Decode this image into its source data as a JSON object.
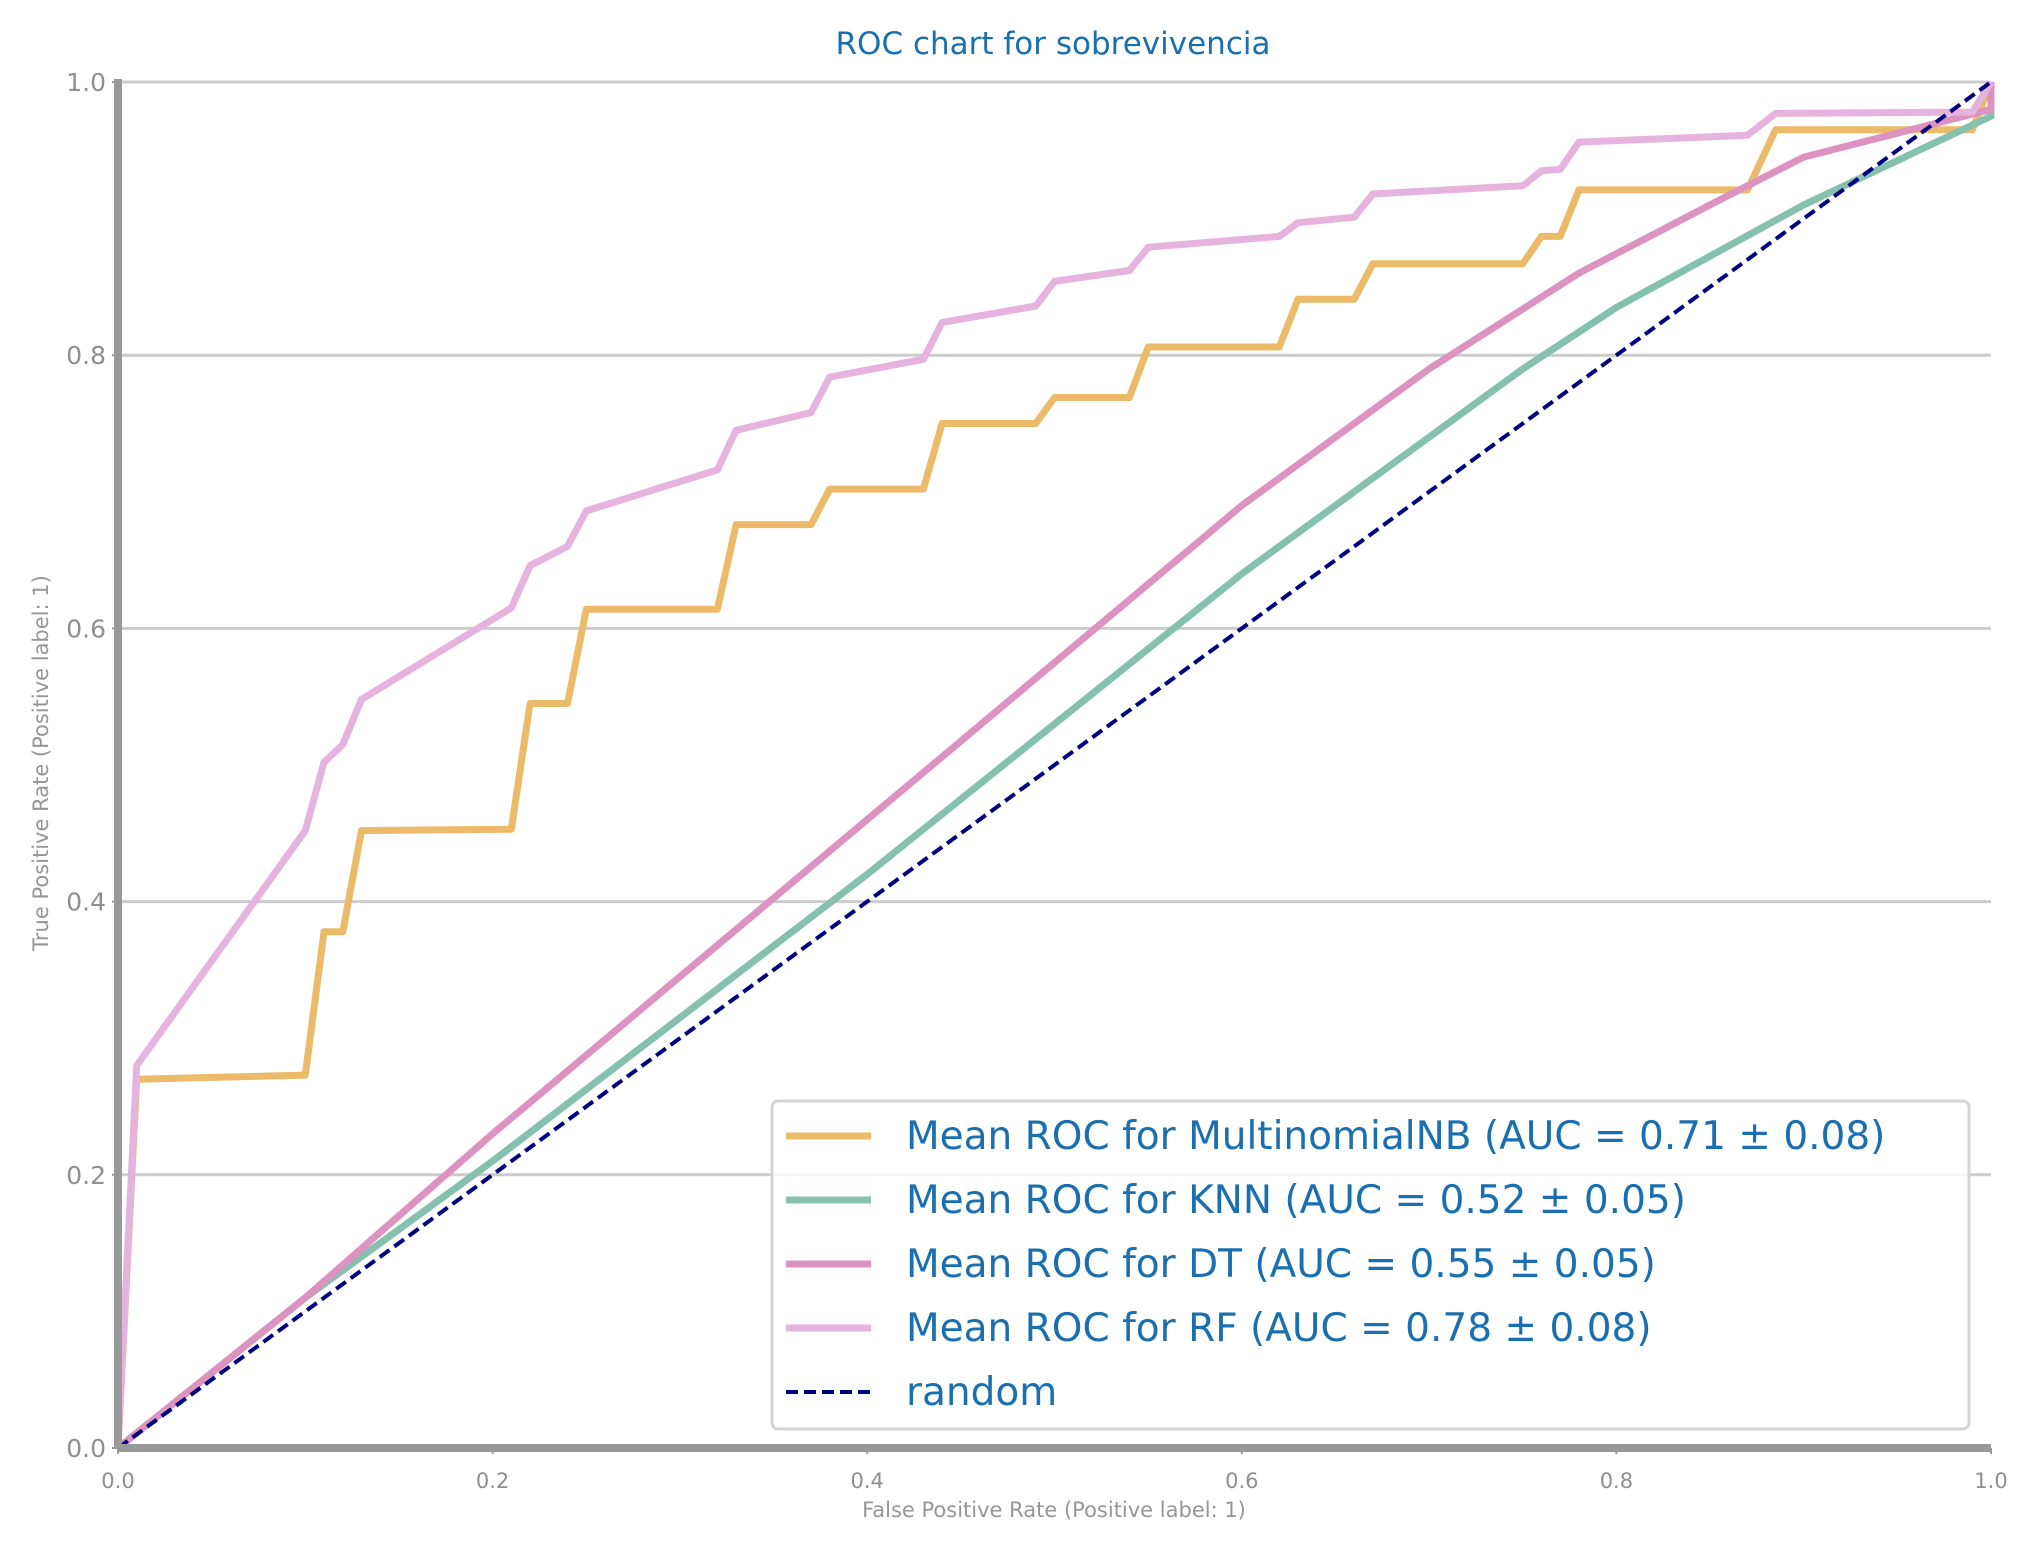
{
  "chart_data": {
    "type": "line",
    "title": "ROC chart for sobrevivencia",
    "xlabel": "False Positive Rate (Positive label: 1)",
    "ylabel": "True Positive Rate (Positive label: 1)",
    "xlim": [
      0,
      1
    ],
    "ylim": [
      0,
      1
    ],
    "x_ticks": [
      "0.0",
      "0.2",
      "0.4",
      "0.6",
      "0.8",
      "1.0"
    ],
    "y_ticks": [
      "0.0",
      "0.2",
      "0.4",
      "0.6",
      "0.8",
      "1.0"
    ],
    "grid": "horizontal",
    "legend_position": "lower-right",
    "series": [
      {
        "name": "Mean ROC for MultinomialNB (AUC = 0.71 ± 0.08)",
        "color": "#ebbb6a",
        "style": "solid",
        "points": [
          [
            0,
            0
          ],
          [
            0.01,
            0.27
          ],
          [
            0.1,
            0.273
          ],
          [
            0.11,
            0.378
          ],
          [
            0.12,
            0.378
          ],
          [
            0.13,
            0.452
          ],
          [
            0.21,
            0.453
          ],
          [
            0.22,
            0.545
          ],
          [
            0.24,
            0.545
          ],
          [
            0.25,
            0.614
          ],
          [
            0.32,
            0.614
          ],
          [
            0.33,
            0.676
          ],
          [
            0.37,
            0.676
          ],
          [
            0.38,
            0.702
          ],
          [
            0.43,
            0.702
          ],
          [
            0.44,
            0.75
          ],
          [
            0.49,
            0.75
          ],
          [
            0.5,
            0.769
          ],
          [
            0.54,
            0.769
          ],
          [
            0.55,
            0.806
          ],
          [
            0.62,
            0.806
          ],
          [
            0.63,
            0.841
          ],
          [
            0.66,
            0.841
          ],
          [
            0.67,
            0.867
          ],
          [
            0.75,
            0.867
          ],
          [
            0.76,
            0.887
          ],
          [
            0.77,
            0.887
          ],
          [
            0.78,
            0.921
          ],
          [
            0.87,
            0.921
          ],
          [
            0.885,
            0.965
          ],
          [
            0.99,
            0.965
          ],
          [
            1,
            1
          ]
        ]
      },
      {
        "name": "Mean ROC for KNN (AUC = 0.52 ± 0.05)",
        "color": "#85c1ae",
        "style": "solid",
        "points": [
          [
            0,
            0
          ],
          [
            0.1,
            0.11
          ],
          [
            0.2,
            0.21
          ],
          [
            0.3,
            0.315
          ],
          [
            0.4,
            0.42
          ],
          [
            0.5,
            0.53
          ],
          [
            0.6,
            0.64
          ],
          [
            0.67,
            0.71
          ],
          [
            0.75,
            0.79
          ],
          [
            0.8,
            0.835
          ],
          [
            0.9,
            0.91
          ],
          [
            1,
            0.975
          ],
          [
            1,
            1
          ]
        ]
      },
      {
        "name": "Mean ROC for DT (AUC = 0.55 ± 0.05)",
        "color": "#dc93bf",
        "style": "solid",
        "points": [
          [
            0,
            0
          ],
          [
            0.1,
            0.11
          ],
          [
            0.2,
            0.23
          ],
          [
            0.3,
            0.345
          ],
          [
            0.4,
            0.46
          ],
          [
            0.5,
            0.575
          ],
          [
            0.6,
            0.69
          ],
          [
            0.7,
            0.79
          ],
          [
            0.78,
            0.86
          ],
          [
            0.85,
            0.91
          ],
          [
            0.9,
            0.945
          ],
          [
            1,
            0.98
          ],
          [
            1,
            1
          ]
        ]
      },
      {
        "name": "Mean ROC for RF (AUC = 0.78 ± 0.08)",
        "color": "#e6b3de",
        "style": "solid",
        "points": [
          [
            0,
            0
          ],
          [
            0.01,
            0.28
          ],
          [
            0.1,
            0.452
          ],
          [
            0.11,
            0.502
          ],
          [
            0.12,
            0.515
          ],
          [
            0.13,
            0.548
          ],
          [
            0.21,
            0.615
          ],
          [
            0.22,
            0.646
          ],
          [
            0.24,
            0.66
          ],
          [
            0.25,
            0.686
          ],
          [
            0.32,
            0.716
          ],
          [
            0.33,
            0.745
          ],
          [
            0.37,
            0.758
          ],
          [
            0.38,
            0.784
          ],
          [
            0.43,
            0.797
          ],
          [
            0.44,
            0.824
          ],
          [
            0.49,
            0.836
          ],
          [
            0.5,
            0.854
          ],
          [
            0.54,
            0.862
          ],
          [
            0.55,
            0.879
          ],
          [
            0.62,
            0.887
          ],
          [
            0.63,
            0.897
          ],
          [
            0.66,
            0.901
          ],
          [
            0.67,
            0.918
          ],
          [
            0.75,
            0.924
          ],
          [
            0.76,
            0.935
          ],
          [
            0.77,
            0.936
          ],
          [
            0.78,
            0.956
          ],
          [
            0.87,
            0.961
          ],
          [
            0.885,
            0.977
          ],
          [
            0.99,
            0.978
          ],
          [
            1,
            1
          ]
        ]
      },
      {
        "name": "random",
        "color": "#000080",
        "style": "dashed",
        "points": [
          [
            0,
            0
          ],
          [
            1,
            1
          ]
        ]
      }
    ]
  }
}
